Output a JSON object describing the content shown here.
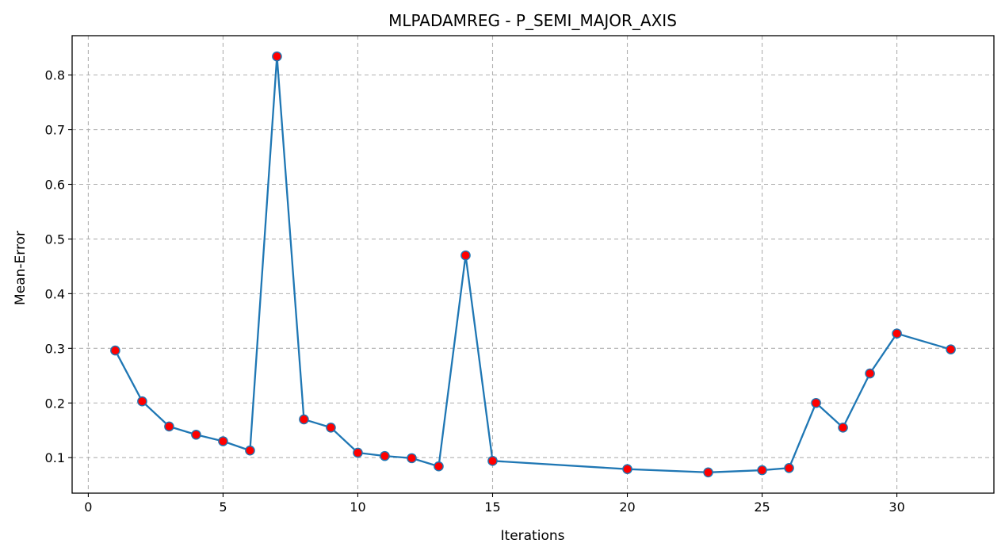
{
  "chart_data": {
    "type": "line",
    "title": "MLPADAMREG - P_SEMI_MAJOR_AXIS",
    "xlabel": "Iterations",
    "ylabel": "Mean-Error",
    "xlim": [
      -0.6,
      33.6
    ],
    "ylim": [
      0.035,
      0.872
    ],
    "xticks": [
      0,
      5,
      10,
      15,
      20,
      25,
      30
    ],
    "yticks": [
      0.1,
      0.2,
      0.3,
      0.4,
      0.5,
      0.6,
      0.7,
      0.8
    ],
    "ytick_labels": [
      "0.1",
      "0.2",
      "0.3",
      "0.4",
      "0.5",
      "0.6",
      "0.7",
      "0.8"
    ],
    "grid": true,
    "line_color": "#1f77b4",
    "marker_color": "#ff0000",
    "series": [
      {
        "x": [
          1,
          2,
          3,
          4,
          5,
          6,
          7,
          8,
          9,
          10,
          11,
          12,
          13,
          14,
          15,
          20,
          23,
          25,
          26,
          27,
          28,
          29,
          30,
          32
        ],
        "y": [
          0.296,
          0.203,
          0.157,
          0.142,
          0.13,
          0.113,
          0.834,
          0.17,
          0.155,
          0.109,
          0.103,
          0.099,
          0.084,
          0.47,
          0.094,
          0.079,
          0.073,
          0.077,
          0.081,
          0.2,
          0.155,
          0.254,
          0.327,
          0.298
        ]
      }
    ]
  }
}
